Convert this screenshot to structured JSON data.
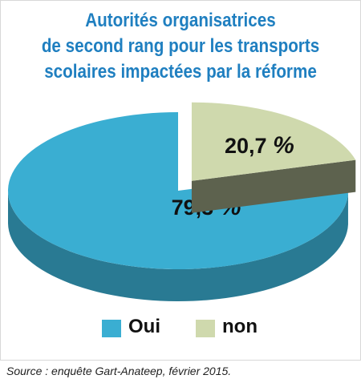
{
  "chart_data": {
    "type": "pie",
    "title_lines": [
      "Autorités organisatrices",
      "de second rang pour les transports",
      "scolaires impactées par la réforme"
    ],
    "slices": [
      {
        "label": "Oui",
        "value": 79.3,
        "display": "79,3",
        "color": "#3aaed2"
      },
      {
        "label": "non",
        "value": 20.7,
        "display": "20,7",
        "color": "#cfd9ad"
      }
    ],
    "unit": "%",
    "legend_position": "bottom"
  },
  "source": "Source : enquête Gart-Anateep, février 2015."
}
